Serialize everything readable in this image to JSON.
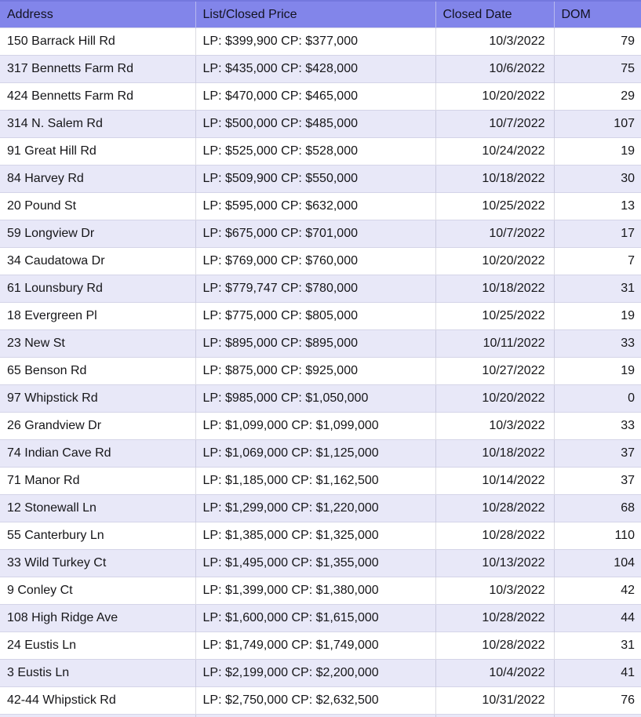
{
  "table": {
    "columns": [
      {
        "label": "Address"
      },
      {
        "label": "List/Closed Price"
      },
      {
        "label": "Closed Date"
      },
      {
        "label": "DOM"
      }
    ],
    "rows": [
      {
        "address": "150 Barrack Hill Rd",
        "price": "LP: $399,900 CP: $377,000",
        "closed_date": "10/3/2022",
        "dom": "79"
      },
      {
        "address": "317 Bennetts Farm Rd",
        "price": "LP: $435,000 CP: $428,000",
        "closed_date": "10/6/2022",
        "dom": "75"
      },
      {
        "address": "424 Bennetts Farm Rd",
        "price": "LP: $470,000 CP: $465,000",
        "closed_date": "10/20/2022",
        "dom": "29"
      },
      {
        "address": "314 N. Salem Rd",
        "price": "LP: $500,000 CP: $485,000",
        "closed_date": "10/7/2022",
        "dom": "107"
      },
      {
        "address": "91 Great Hill Rd",
        "price": "LP: $525,000 CP: $528,000",
        "closed_date": "10/24/2022",
        "dom": "19"
      },
      {
        "address": "84 Harvey Rd",
        "price": "LP: $509,900 CP: $550,000",
        "closed_date": "10/18/2022",
        "dom": "30"
      },
      {
        "address": "20 Pound St",
        "price": "LP: $595,000 CP: $632,000",
        "closed_date": "10/25/2022",
        "dom": "13"
      },
      {
        "address": "59 Longview Dr",
        "price": "LP: $675,000 CP: $701,000",
        "closed_date": "10/7/2022",
        "dom": "17"
      },
      {
        "address": "34 Caudatowa Dr",
        "price": "LP: $769,000 CP: $760,000",
        "closed_date": "10/20/2022",
        "dom": "7"
      },
      {
        "address": "61 Lounsbury Rd",
        "price": "LP: $779,747 CP: $780,000",
        "closed_date": "10/18/2022",
        "dom": "31"
      },
      {
        "address": "18 Evergreen Pl",
        "price": "LP: $775,000 CP: $805,000",
        "closed_date": "10/25/2022",
        "dom": "19"
      },
      {
        "address": "23 New St",
        "price": "LP: $895,000 CP: $895,000",
        "closed_date": "10/11/2022",
        "dom": "33"
      },
      {
        "address": "65 Benson Rd",
        "price": "LP: $875,000 CP: $925,000",
        "closed_date": "10/27/2022",
        "dom": "19"
      },
      {
        "address": "97 Whipstick Rd",
        "price": "LP: $985,000 CP: $1,050,000",
        "closed_date": "10/20/2022",
        "dom": "0"
      },
      {
        "address": "26 Grandview Dr",
        "price": "LP: $1,099,000 CP: $1,099,000",
        "closed_date": "10/3/2022",
        "dom": "33"
      },
      {
        "address": "74 Indian Cave Rd",
        "price": "LP: $1,069,000 CP: $1,125,000",
        "closed_date": "10/18/2022",
        "dom": "37"
      },
      {
        "address": "71 Manor Rd",
        "price": "LP: $1,185,000 CP: $1,162,500",
        "closed_date": "10/14/2022",
        "dom": "37"
      },
      {
        "address": "12 Stonewall Ln",
        "price": "LP: $1,299,000 CP: $1,220,000",
        "closed_date": "10/28/2022",
        "dom": "68"
      },
      {
        "address": "55 Canterbury Ln",
        "price": "LP: $1,385,000 CP: $1,325,000",
        "closed_date": "10/28/2022",
        "dom": "110"
      },
      {
        "address": "33 Wild Turkey Ct",
        "price": "LP: $1,495,000 CP: $1,355,000",
        "closed_date": "10/13/2022",
        "dom": "104"
      },
      {
        "address": "9 Conley Ct",
        "price": "LP: $1,399,000 CP: $1,380,000",
        "closed_date": "10/3/2022",
        "dom": "42"
      },
      {
        "address": "108 High Ridge Ave",
        "price": "LP: $1,600,000 CP: $1,615,000",
        "closed_date": "10/28/2022",
        "dom": "44"
      },
      {
        "address": "24 Eustis Ln",
        "price": "LP: $1,749,000 CP: $1,749,000",
        "closed_date": "10/28/2022",
        "dom": "31"
      },
      {
        "address": "3 Eustis Ln",
        "price": "LP: $2,199,000 CP: $2,200,000",
        "closed_date": "10/4/2022",
        "dom": "41"
      },
      {
        "address": "42-44 Whipstick Rd",
        "price": "LP: $2,750,000 CP: $2,632,500",
        "closed_date": "10/31/2022",
        "dom": "76"
      }
    ]
  },
  "colors": {
    "header_bg": "#8285ea",
    "header_top_border": "#7478de",
    "band_row_bg": "#e8e8f8",
    "grid_line": "#d4d4e8",
    "text": "#161619"
  }
}
